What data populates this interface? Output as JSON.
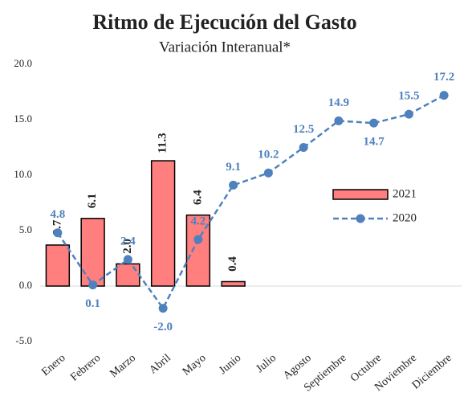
{
  "chart_data": {
    "type": "bar-line",
    "title": "Ritmo de Ejecución del Gasto",
    "subtitle": "Variación Interanual*",
    "categories": [
      "Enero",
      "Febrero",
      "Marzo",
      "Abril",
      "Mayo",
      "Junio",
      "Julio",
      "Agosto",
      "Septiembre",
      "Octubre",
      "Noviembre",
      "Diciembre"
    ],
    "series": [
      {
        "name": "2021",
        "type": "bar",
        "color": "#ff7f7f",
        "values": [
          3.7,
          6.1,
          2.0,
          11.3,
          6.4,
          0.4,
          null,
          null,
          null,
          null,
          null,
          null
        ],
        "value_labels": [
          "3.7",
          "6.1",
          "2.0",
          "11.3",
          "6.4",
          "0.4",
          null,
          null,
          null,
          null,
          null,
          null
        ]
      },
      {
        "name": "2020",
        "type": "line",
        "color": "#4f81bd",
        "values": [
          4.8,
          0.1,
          2.4,
          -2.0,
          4.2,
          9.1,
          10.2,
          12.5,
          14.9,
          14.7,
          15.5,
          17.2
        ],
        "value_labels": [
          "4.8",
          "0.1",
          "2.4",
          "-2.0",
          "4.2",
          "9.1",
          "10.2",
          "12.5",
          "14.9",
          "14.7",
          "15.5",
          "17.2"
        ]
      }
    ],
    "ylim": [
      -5,
      20
    ],
    "yticks": [
      {
        "value": -5,
        "label": "-5.0"
      },
      {
        "value": 0,
        "label": "0.0"
      },
      {
        "value": 5,
        "label": "5.0"
      },
      {
        "value": 10,
        "label": "10.0"
      },
      {
        "value": 15,
        "label": "15.0"
      },
      {
        "value": 20,
        "label": "20.0"
      }
    ],
    "grid": false,
    "legend": "right"
  }
}
